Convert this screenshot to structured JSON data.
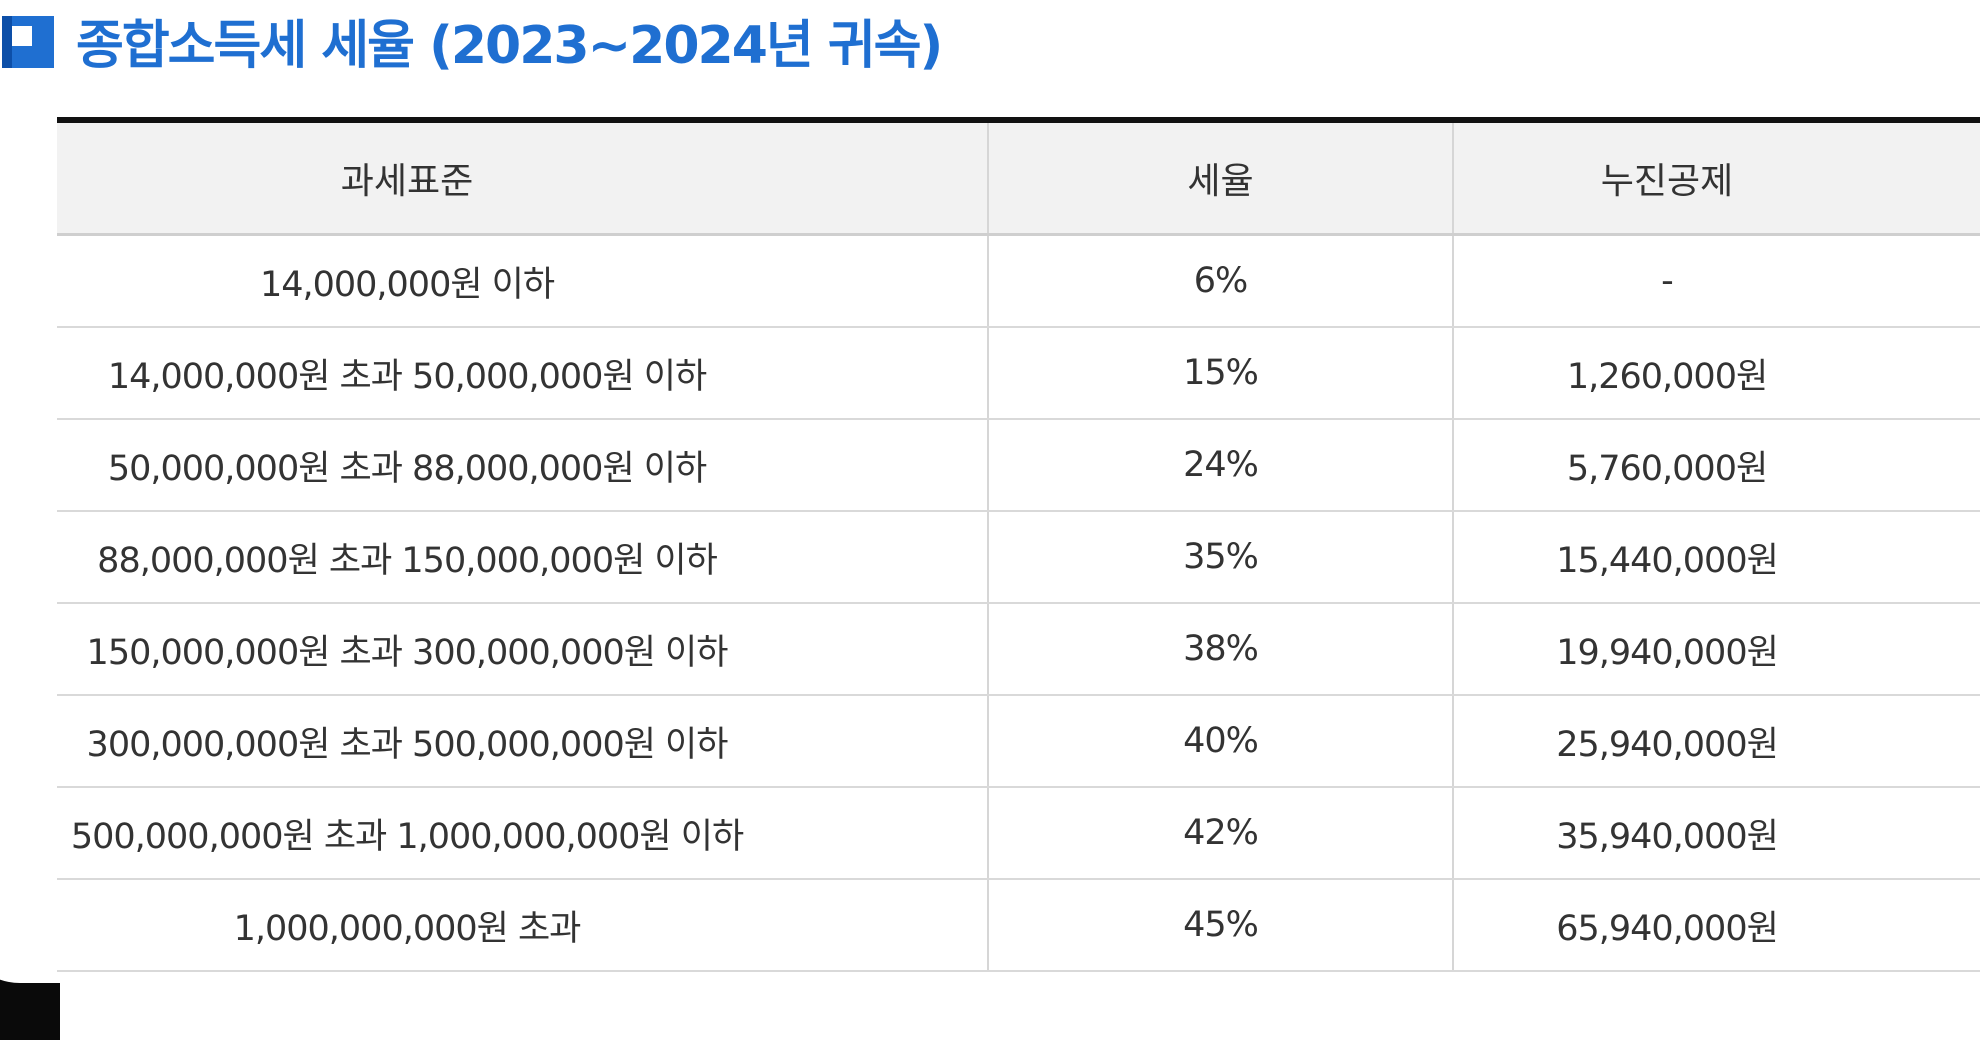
{
  "title": "종합소득세 세율 (2023~2024년 귀속)",
  "colors": {
    "accent": "#1f6fd1",
    "header_bg": "#f2f2f2",
    "top_border": "#111111"
  },
  "table": {
    "headers": [
      "과세표준",
      "세율",
      "누진공제"
    ],
    "rows": [
      {
        "base": "14,000,000원 이하",
        "rate": "6%",
        "deduction": "-"
      },
      {
        "base": "14,000,000원 초과 50,000,000원 이하",
        "rate": "15%",
        "deduction": "1,260,000원"
      },
      {
        "base": "50,000,000원 초과 88,000,000원 이하",
        "rate": "24%",
        "deduction": "5,760,000원"
      },
      {
        "base": "88,000,000원 초과 150,000,000원 이하",
        "rate": "35%",
        "deduction": "15,440,000원"
      },
      {
        "base": "150,000,000원 초과 300,000,000원 이하",
        "rate": "38%",
        "deduction": "19,940,000원"
      },
      {
        "base": "300,000,000원 초과 500,000,000원 이하",
        "rate": "40%",
        "deduction": "25,940,000원"
      },
      {
        "base": "500,000,000원 초과 1,000,000,000원 이하",
        "rate": "42%",
        "deduction": "35,940,000원"
      },
      {
        "base": "1,000,000,000원 초과",
        "rate": "45%",
        "deduction": "65,940,000원"
      }
    ]
  }
}
